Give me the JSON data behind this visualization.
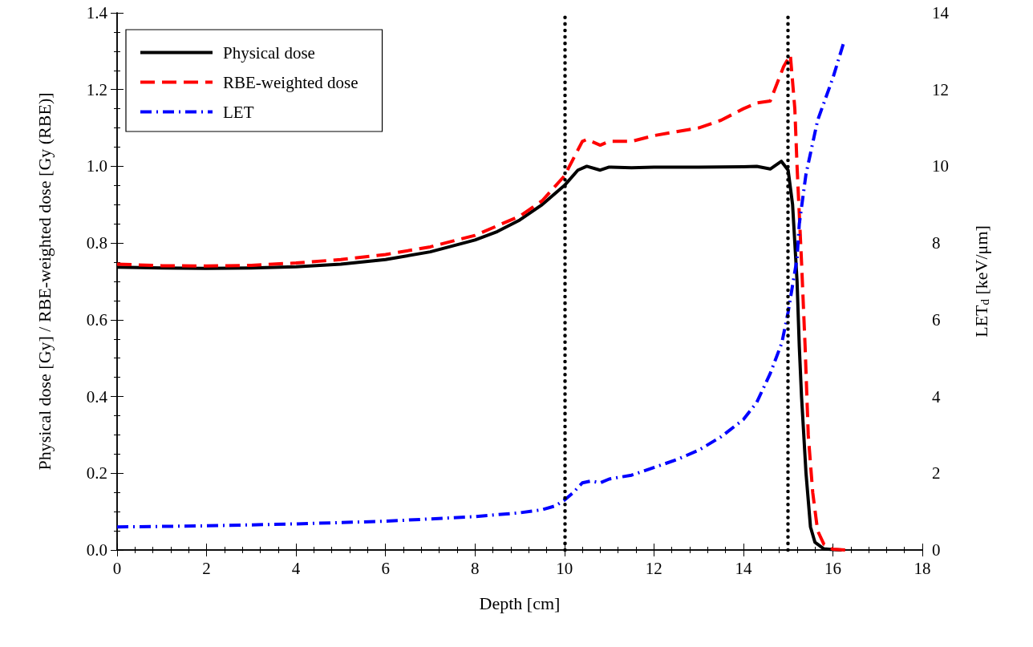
{
  "chart_data": {
    "type": "line",
    "xlabel": "Depth [cm]",
    "ylabel": "Physical dose [Gy] / RBE-weighted dose [Gy (RBE)]",
    "y2label": "LET$_{d}$ [keV/μm]",
    "xlim": [
      0,
      18
    ],
    "xticks": [
      0,
      2,
      4,
      6,
      8,
      10,
      12,
      14,
      16,
      18
    ],
    "ylim": [
      0,
      1.4
    ],
    "yticks": [
      {
        "value": 0,
        "label": "0.0"
      },
      {
        "value": 0.2,
        "label": "0.2"
      },
      {
        "value": 0.4,
        "label": "0.4"
      },
      {
        "value": 0.6,
        "label": "0.6"
      },
      {
        "value": 0.8,
        "label": "0.8"
      },
      {
        "value": 1,
        "label": "1.0"
      },
      {
        "value": 1.2,
        "label": "1.2"
      },
      {
        "value": 1.4,
        "label": "1.4"
      }
    ],
    "y2lim": [
      0,
      14
    ],
    "y2ticks": [
      0,
      2,
      4,
      6,
      8,
      10,
      12,
      14
    ],
    "grid": false,
    "legend": "top left",
    "marker": "none",
    "series": [
      {
        "name": "Physical dose",
        "color": "#000000",
        "line_style": "solid",
        "x": [
          0,
          1,
          2,
          3,
          4,
          5,
          6,
          7,
          8,
          8.5,
          9,
          9.5,
          10,
          10.3,
          10.5,
          10.8,
          11,
          11.5,
          12,
          13,
          14,
          14.3,
          14.6,
          14.85,
          15,
          15.1,
          15.2,
          15.25,
          15.3,
          15.4,
          15.5,
          15.6,
          15.8,
          16,
          16.2
        ],
        "values": [
          0.737,
          0.735,
          0.734,
          0.735,
          0.738,
          0.745,
          0.757,
          0.777,
          0.808,
          0.83,
          0.86,
          0.9,
          0.95,
          0.99,
          1.0,
          0.99,
          0.998,
          0.996,
          0.998,
          0.998,
          0.999,
          1.0,
          0.993,
          1.013,
          0.99,
          0.9,
          0.7,
          0.53,
          0.4,
          0.2,
          0.06,
          0.02,
          0.003,
          0.001,
          0
        ]
      },
      {
        "name": "RBE-weighted dose",
        "color": "#ff0000",
        "line_style": "dashed",
        "x": [
          0,
          1,
          2,
          3,
          4,
          5,
          6,
          7,
          8,
          9,
          9.5,
          10,
          10.2,
          10.4,
          10.5,
          10.8,
          11,
          11.5,
          12,
          13,
          13.5,
          14,
          14.3,
          14.6,
          14.9,
          15.05,
          15.15,
          15.2,
          15.3,
          15.38,
          15.45,
          15.55,
          15.66,
          15.8,
          16,
          16.3
        ],
        "values": [
          0.745,
          0.741,
          0.74,
          0.742,
          0.748,
          0.757,
          0.77,
          0.79,
          0.82,
          0.87,
          0.91,
          0.975,
          1.02,
          1.065,
          1.07,
          1.055,
          1.065,
          1.065,
          1.08,
          1.1,
          1.12,
          1.15,
          1.165,
          1.17,
          1.26,
          1.29,
          1.15,
          1.0,
          0.75,
          0.53,
          0.3,
          0.15,
          0.05,
          0.015,
          0.002,
          0
        ]
      },
      {
        "name": "LET",
        "color": "#0000ff",
        "line_style": "dashdot",
        "axis": "y2",
        "x": [
          0,
          2,
          4,
          6,
          8,
          9,
          9.5,
          9.8,
          10,
          10.2,
          10.4,
          10.6,
          10.8,
          11,
          11.5,
          12,
          12.5,
          13,
          13.5,
          14,
          14.3,
          14.6,
          14.86,
          15,
          15.1,
          15.2,
          15.25,
          15.4,
          15.66,
          16,
          16.25
        ],
        "values": [
          0.6,
          0.63,
          0.68,
          0.75,
          0.87,
          0.97,
          1.05,
          1.15,
          1.3,
          1.5,
          1.75,
          1.8,
          1.75,
          1.85,
          1.95,
          2.15,
          2.35,
          2.6,
          2.95,
          3.4,
          3.85,
          4.6,
          5.4,
          6.2,
          6.9,
          7.6,
          8.5,
          9.8,
          11.2,
          12.3,
          13.25
        ]
      }
    ],
    "ref_lines": [
      {
        "axis": "x",
        "value": 10,
        "color": "#000000",
        "line_style": "dotted"
      },
      {
        "axis": "x",
        "value": 15,
        "color": "#000000",
        "line_style": "dotted"
      }
    ]
  }
}
